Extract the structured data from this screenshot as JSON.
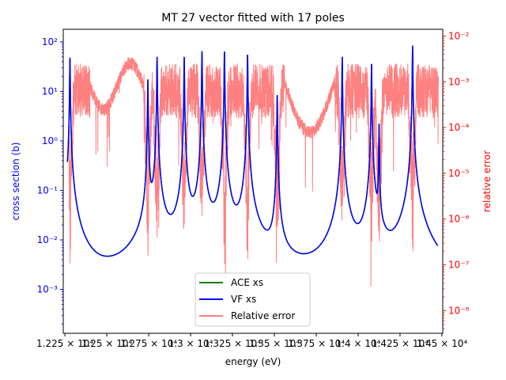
{
  "chart_data": {
    "type": "line",
    "title": "MT 27 vector fitted with 17 poles",
    "xlabel": "energy (eV)",
    "ylabel_left": "cross section (b)",
    "ylabel_right": "relative error",
    "x_ticks": [
      {
        "value": 12250,
        "label": "1.225 × 10⁴"
      },
      {
        "value": 12500,
        "label": "1.25 × 10⁴"
      },
      {
        "value": 12750,
        "label": "1.275 × 10⁴"
      },
      {
        "value": 13000,
        "label": "1.3 × 10⁴"
      },
      {
        "value": 13250,
        "label": "1.325 × 10⁴"
      },
      {
        "value": 13500,
        "label": "1.35 × 10⁴"
      },
      {
        "value": 13750,
        "label": "1.375 × 10⁴"
      },
      {
        "value": 14000,
        "label": "1.4 × 10⁴"
      },
      {
        "value": 14250,
        "label": "1.425 × 10⁴"
      },
      {
        "value": 14500,
        "label": "1.45 × 10⁴"
      }
    ],
    "xlim": [
      12240,
      14505
    ],
    "left_yscale": "log",
    "left_ylim": [
      0.00013,
      180
    ],
    "left_ticks": [
      {
        "value": 0.001,
        "label": "10⁻³"
      },
      {
        "value": 0.01,
        "label": "10⁻²"
      },
      {
        "value": 0.1,
        "label": "10⁻¹"
      },
      {
        "value": 1,
        "label": "10⁰"
      },
      {
        "value": 10,
        "label": "10¹"
      },
      {
        "value": 100,
        "label": "10²"
      }
    ],
    "right_yscale": "log",
    "right_ylim": [
      3.2e-09,
      0.014
    ],
    "right_ticks": [
      {
        "value": 1e-08,
        "label": "10⁻⁸"
      },
      {
        "value": 1e-07,
        "label": "10⁻⁷"
      },
      {
        "value": 1e-06,
        "label": "10⁻⁶"
      },
      {
        "value": 1e-05,
        "label": "10⁻⁵"
      },
      {
        "value": 0.0001,
        "label": "10⁻⁴"
      },
      {
        "value": 0.001,
        "label": "10⁻³"
      },
      {
        "value": 0.01,
        "label": "10⁻²"
      }
    ],
    "baseline_xs": 0.00025,
    "resonances": [
      {
        "energy": 12280,
        "peak": 50
      },
      {
        "energy": 12745,
        "peak": 18
      },
      {
        "energy": 12800,
        "peak": 50
      },
      {
        "energy": 12962,
        "peak": 50
      },
      {
        "energy": 13068,
        "peak": 65
      },
      {
        "energy": 13202,
        "peak": 70
      },
      {
        "energy": 13340,
        "peak": 60
      },
      {
        "energy": 13517,
        "peak": 9
      },
      {
        "energy": 13905,
        "peak": 50
      },
      {
        "energy": 14080,
        "peak": 36
      },
      {
        "energy": 14125,
        "peak": 2.2
      },
      {
        "energy": 14325,
        "peak": 85
      }
    ],
    "series": [
      {
        "name": "ACE xs",
        "color": "#008000",
        "axis": "left"
      },
      {
        "name": "VF xs",
        "color": "#0000ff",
        "axis": "left"
      },
      {
        "name": "Relative error",
        "color": "#ff8080",
        "axis": "right"
      }
    ],
    "legend_position": "bottom-center",
    "colors": {
      "left_axis": "#0000ff",
      "right_axis": "#ff0000",
      "frame": "#000000"
    }
  }
}
